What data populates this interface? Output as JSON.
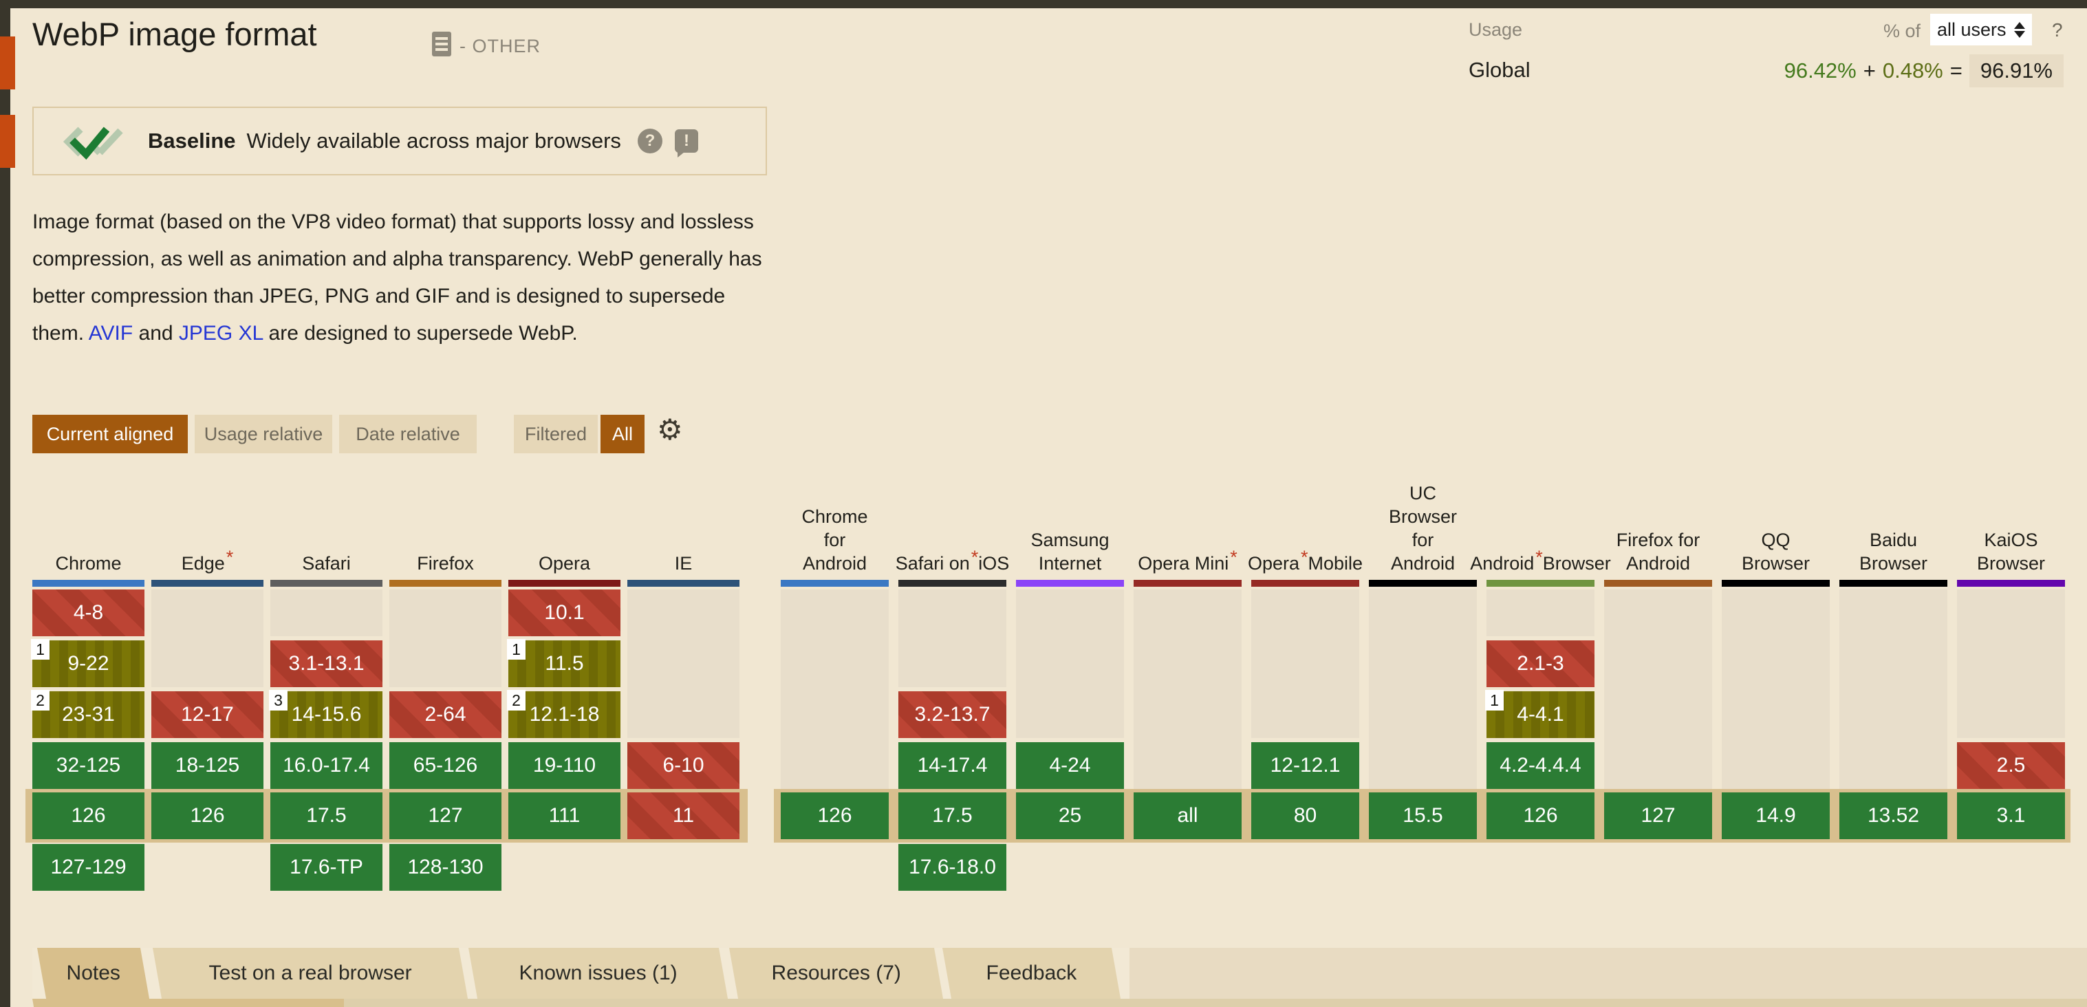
{
  "header": {
    "title": "WebP image format",
    "category": "- OTHER",
    "usage_label": "Usage",
    "percent_of_label": "% of",
    "select_value": "all users",
    "help_icon": "?",
    "region_label": "Global",
    "usage_full": "96.42%",
    "plus": "+",
    "usage_partial": "0.48%",
    "equals": "=",
    "usage_total": "96.91%"
  },
  "baseline": {
    "label": "Baseline",
    "text": "Widely available across major browsers",
    "help_icon": "?",
    "alert_icon": "!"
  },
  "description": {
    "t1": "Image format (based on the VP8 video format) that supports lossy and lossless compression, as well as animation and alpha transparency. WebP generally has better compression than JPEG, PNG and GIF and is designed to supersede them. ",
    "link1": "AVIF",
    "t2": " and ",
    "link2": "JPEG XL",
    "t3": " are designed to supersede WebP."
  },
  "controls": {
    "view_buttons": [
      {
        "label": "Current aligned",
        "active": true
      },
      {
        "label": "Usage relative",
        "active": false
      },
      {
        "label": "Date relative",
        "active": false
      }
    ],
    "filter_buttons": [
      {
        "label": "Filtered",
        "active": false
      },
      {
        "label": "All",
        "active": true
      }
    ],
    "settings_icon": "⚙"
  },
  "support_table": {
    "legend": {
      "supported_color": "#2b7c34",
      "partial_color": "#7b7606",
      "unsupported_color": "#bc4434",
      "empty_color": "#e8decb",
      "current_row_color": "#d8bf8e",
      "note_star": "*"
    },
    "desktop": [
      {
        "name": "Chrome",
        "lines": [
          "Chrome"
        ],
        "star_line": null,
        "bar": "#3b78c3",
        "cells": [
          {
            "row": 0,
            "kind": "n",
            "label": "4-8"
          },
          {
            "row": 1,
            "kind": "a",
            "label": "9-22",
            "flag": "1"
          },
          {
            "row": 2,
            "kind": "a",
            "label": "23-31",
            "flag": "2"
          },
          {
            "row": 3,
            "kind": "y",
            "label": "32-125"
          },
          {
            "row": 4,
            "kind": "y",
            "label": "126"
          },
          {
            "row": 5,
            "kind": "y",
            "label": "127-129"
          }
        ]
      },
      {
        "name": "Edge",
        "lines": [
          "Edge"
        ],
        "star_line": 0,
        "bar": "#2f5379",
        "cells": [
          {
            "row": 0,
            "span": 2,
            "kind": "u"
          },
          {
            "row": 2,
            "kind": "n",
            "label": "12-17"
          },
          {
            "row": 3,
            "kind": "y",
            "label": "18-125"
          },
          {
            "row": 4,
            "kind": "y",
            "label": "126"
          }
        ]
      },
      {
        "name": "Safari",
        "lines": [
          "Safari"
        ],
        "star_line": null,
        "bar": "#5f5f5f",
        "cells": [
          {
            "row": 0,
            "kind": "u"
          },
          {
            "row": 1,
            "kind": "n",
            "label": "3.1-13.1"
          },
          {
            "row": 2,
            "kind": "a",
            "label": "14-15.6",
            "flag": "3"
          },
          {
            "row": 3,
            "kind": "y",
            "label": "16.0-17.4"
          },
          {
            "row": 4,
            "kind": "y",
            "label": "17.5"
          },
          {
            "row": 5,
            "kind": "y",
            "label": "17.6-TP"
          }
        ]
      },
      {
        "name": "Firefox",
        "lines": [
          "Firefox"
        ],
        "star_line": null,
        "bar": "#b06f20",
        "cells": [
          {
            "row": 0,
            "span": 2,
            "kind": "u"
          },
          {
            "row": 2,
            "kind": "n",
            "label": "2-64"
          },
          {
            "row": 3,
            "kind": "y",
            "label": "65-126"
          },
          {
            "row": 4,
            "kind": "y",
            "label": "127"
          },
          {
            "row": 5,
            "kind": "y",
            "label": "128-130"
          }
        ]
      },
      {
        "name": "Opera",
        "lines": [
          "Opera"
        ],
        "star_line": null,
        "bar": "#7c1818",
        "cells": [
          {
            "row": 0,
            "kind": "n",
            "label": "10.1"
          },
          {
            "row": 1,
            "kind": "a",
            "label": "11.5",
            "flag": "1"
          },
          {
            "row": 2,
            "kind": "a",
            "label": "12.1-18",
            "flag": "2"
          },
          {
            "row": 3,
            "kind": "y",
            "label": "19-110"
          },
          {
            "row": 4,
            "kind": "y",
            "label": "111"
          }
        ]
      },
      {
        "name": "IE",
        "lines": [
          "IE"
        ],
        "star_line": null,
        "bar": "#2f5379",
        "cells": [
          {
            "row": 0,
            "span": 3,
            "kind": "u"
          },
          {
            "row": 3,
            "kind": "n",
            "label": "6-10"
          },
          {
            "row": 4,
            "kind": "n",
            "label": "11"
          }
        ]
      }
    ],
    "mobile": [
      {
        "name": "Chrome for Android",
        "lines": [
          "Chrome",
          "for",
          "Android"
        ],
        "star_line": null,
        "bar": "#3b78c3",
        "cells": [
          {
            "row": 0,
            "span": 4,
            "kind": "u"
          },
          {
            "row": 4,
            "kind": "y",
            "label": "126"
          }
        ]
      },
      {
        "name": "Safari on iOS",
        "lines": [
          "Safari on",
          "iOS"
        ],
        "star_line": 0,
        "bar": "#2d2d2d",
        "cells": [
          {
            "row": 0,
            "span": 2,
            "kind": "u"
          },
          {
            "row": 2,
            "kind": "n",
            "label": "3.2-13.7"
          },
          {
            "row": 3,
            "kind": "y",
            "label": "14-17.4"
          },
          {
            "row": 4,
            "kind": "y",
            "label": "17.5"
          },
          {
            "row": 5,
            "kind": "y",
            "label": "17.6-18.0"
          }
        ]
      },
      {
        "name": "Samsung Internet",
        "lines": [
          "Samsung",
          "Internet"
        ],
        "star_line": null,
        "bar": "#8b45f7",
        "cells": [
          {
            "row": 0,
            "span": 3,
            "kind": "u"
          },
          {
            "row": 3,
            "kind": "y",
            "label": "4-24"
          },
          {
            "row": 4,
            "kind": "y",
            "label": "25"
          }
        ]
      },
      {
        "name": "Opera Mini",
        "lines": [
          "Opera Mini"
        ],
        "star_line": 0,
        "bar": "#962b25",
        "cells": [
          {
            "row": 0,
            "span": 4,
            "kind": "u"
          },
          {
            "row": 4,
            "kind": "y",
            "label": "all"
          }
        ]
      },
      {
        "name": "Opera Mobile",
        "lines": [
          "Opera",
          "Mobile"
        ],
        "star_line": 0,
        "bar": "#962b25",
        "cells": [
          {
            "row": 0,
            "span": 3,
            "kind": "u"
          },
          {
            "row": 3,
            "kind": "y",
            "label": "12-12.1"
          },
          {
            "row": 4,
            "kind": "y",
            "label": "80"
          }
        ]
      },
      {
        "name": "UC Browser for Android",
        "lines": [
          "UC",
          "Browser",
          "for",
          "Android"
        ],
        "star_line": null,
        "bar": "#000000",
        "cells": [
          {
            "row": 0,
            "span": 4,
            "kind": "u"
          },
          {
            "row": 4,
            "kind": "y",
            "label": "15.5"
          }
        ]
      },
      {
        "name": "Android Browser",
        "lines": [
          "Android",
          "Browser"
        ],
        "star_line": 0,
        "bar": "#6f9440",
        "cells": [
          {
            "row": 0,
            "kind": "u"
          },
          {
            "row": 1,
            "kind": "n",
            "label": "2.1-3"
          },
          {
            "row": 2,
            "kind": "a",
            "label": "4-4.1",
            "flag": "1"
          },
          {
            "row": 3,
            "kind": "y",
            "label": "4.2-4.4.4"
          },
          {
            "row": 4,
            "kind": "y",
            "label": "126"
          }
        ]
      },
      {
        "name": "Firefox for Android",
        "lines": [
          "Firefox for",
          "Android"
        ],
        "star_line": null,
        "bar": "#a05b22",
        "cells": [
          {
            "row": 0,
            "span": 4,
            "kind": "u"
          },
          {
            "row": 4,
            "kind": "y",
            "label": "127"
          }
        ]
      },
      {
        "name": "QQ Browser",
        "lines": [
          "QQ",
          "Browser"
        ],
        "star_line": null,
        "bar": "#000000",
        "cells": [
          {
            "row": 0,
            "span": 4,
            "kind": "u"
          },
          {
            "row": 4,
            "kind": "y",
            "label": "14.9"
          }
        ]
      },
      {
        "name": "Baidu Browser",
        "lines": [
          "Baidu",
          "Browser"
        ],
        "star_line": null,
        "bar": "#000000",
        "cells": [
          {
            "row": 0,
            "span": 4,
            "kind": "u"
          },
          {
            "row": 4,
            "kind": "y",
            "label": "13.52"
          }
        ]
      },
      {
        "name": "KaiOS Browser",
        "lines": [
          "KaiOS",
          "Browser"
        ],
        "star_line": null,
        "bar": "#6408ad",
        "cells": [
          {
            "row": 0,
            "span": 3,
            "kind": "u"
          },
          {
            "row": 3,
            "kind": "n",
            "label": "2.5"
          },
          {
            "row": 4,
            "kind": "y",
            "label": "3.1"
          }
        ]
      }
    ]
  },
  "tabs": [
    {
      "label": "Notes",
      "active": true
    },
    {
      "label": "Test on a real browser",
      "active": false
    },
    {
      "label": "Known issues (1)",
      "active": false
    },
    {
      "label": "Resources (7)",
      "active": false
    },
    {
      "label": "Feedback",
      "active": false
    }
  ]
}
